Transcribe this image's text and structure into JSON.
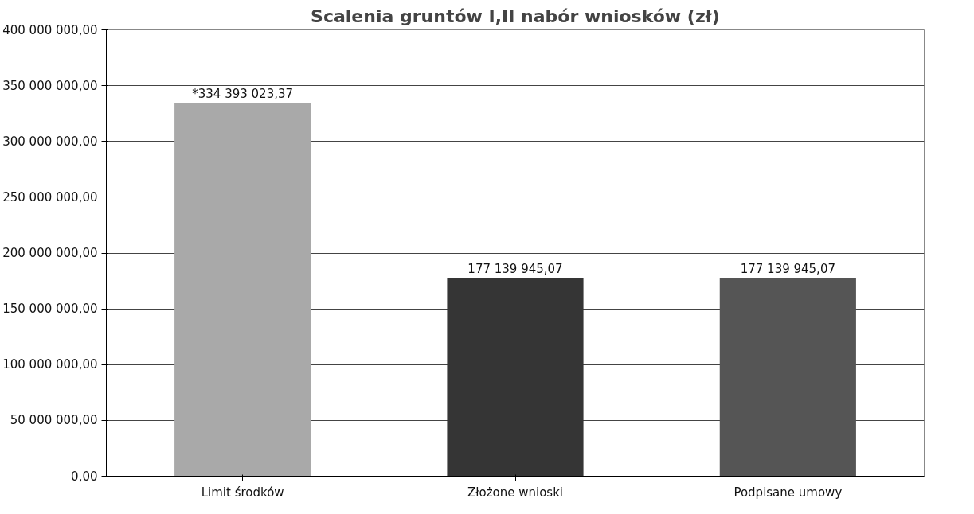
{
  "chart_data": {
    "type": "bar",
    "title": "Scalenia gruntów I,II nabór wniosków (zł)",
    "categories": [
      "Limit środków",
      "Złożone wnioski",
      "Podpisane umowy"
    ],
    "values": [
      334393023.37,
      177139945.07,
      177139945.07
    ],
    "colors": [
      "#a9a9a9",
      "#353535",
      "#555555"
    ],
    "value_labels": [
      "*334 393 023,37",
      "177 139 945,07",
      "177 139 945,07"
    ],
    "ylim": [
      0,
      400000000
    ],
    "yticks": [
      {
        "value": 0,
        "label": "0,00"
      },
      {
        "value": 50000000,
        "label": "50 000 000,00"
      },
      {
        "value": 100000000,
        "label": "100 000 000,00"
      },
      {
        "value": 150000000,
        "label": "150 000 000,00"
      },
      {
        "value": 200000000,
        "label": "200 000 000,00"
      },
      {
        "value": 250000000,
        "label": "250 000 000,00"
      },
      {
        "value": 300000000,
        "label": "300 000 000,00"
      },
      {
        "value": 350000000,
        "label": "350 000 000,00"
      },
      {
        "value": 400000000,
        "label": "400 000 000,00"
      }
    ],
    "grid": "y"
  }
}
